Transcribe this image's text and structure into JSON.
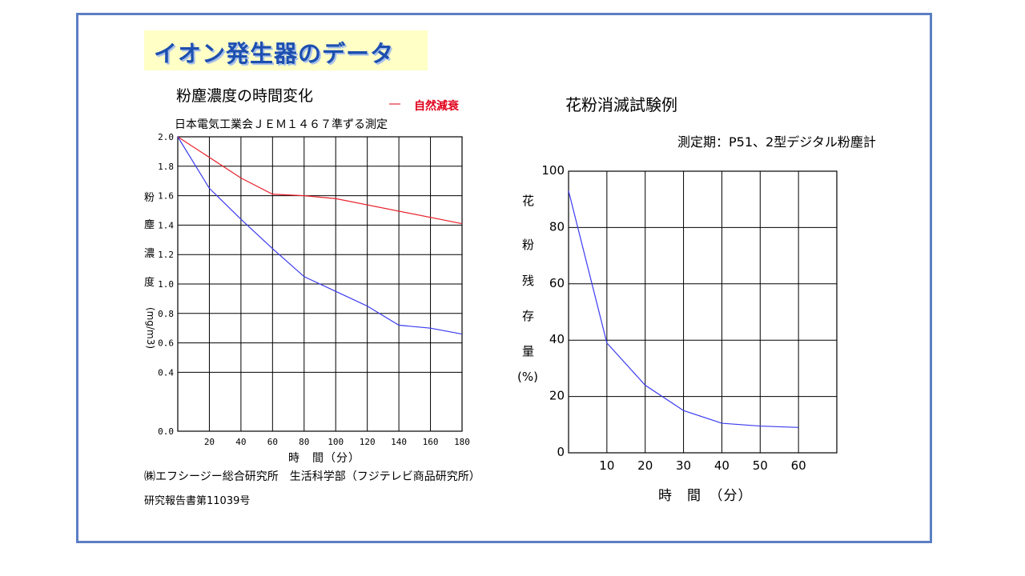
{
  "page": {
    "title": "イオン発生器のデータ",
    "source_line1": "㈱エフシージー総合研究所　生活科学部（フジテレビ商品研究所）",
    "source_line2": "研究報告書第11039号"
  },
  "left_chart": {
    "title": "粉塵濃度の時間変化",
    "subtitle": "日本電気工業会ＪＥＭ１４６７準ずる測定",
    "legend_dash": "―",
    "legend_label": "自然減衰",
    "ylabel_chars": [
      "粉",
      "塵",
      "濃",
      "度"
    ],
    "ylabel_unit": "(mg/m3)",
    "xlabel": "時　間（分）"
  },
  "right_chart": {
    "title": "花粉消滅試験例",
    "note": "測定期：P51、2型デジタル粉塵計",
    "ylabel_chars": [
      "花",
      "粉",
      "残",
      "存",
      "量"
    ],
    "ylabel_unit": "(%)",
    "xlabel": "時　間　（分）"
  },
  "colors": {
    "frame": "#5b7fc4",
    "title_bg": "#ffffc6",
    "title_text": "#1d4fb0",
    "natural_decay": "#e8202a",
    "ion": "#3a3af0",
    "legend_text": "#e0001b"
  },
  "chart_data": [
    {
      "type": "line",
      "title": "粉塵濃度の時間変化",
      "xlabel": "時　間（分）",
      "ylabel": "粉塵濃度(mg/m3)",
      "xlim": [
        0,
        180
      ],
      "ylim": [
        0.0,
        2.0
      ],
      "x_ticks": [
        20,
        40,
        60,
        80,
        100,
        120,
        140,
        160,
        180
      ],
      "y_ticks": [
        0.0,
        0.4,
        0.6,
        0.8,
        1.0,
        1.2,
        1.4,
        1.6,
        1.8,
        2.0
      ],
      "y_tick_labels": [
        "0.0",
        "0.4",
        "0.6",
        "0.8",
        "1.0",
        "1.2",
        "1.4",
        "1.6",
        "1.8",
        "2.0"
      ],
      "grid": true,
      "legend": "top-right",
      "series": [
        {
          "name": "自然減衰",
          "color": "#e8202a",
          "x": [
            0,
            40,
            60,
            80,
            100,
            180
          ],
          "y": [
            2.0,
            1.72,
            1.61,
            1.6,
            1.58,
            1.41
          ]
        },
        {
          "color": "#3a3af0",
          "x": [
            0,
            20,
            40,
            60,
            80,
            100,
            120,
            140,
            160,
            180
          ],
          "y": [
            2.0,
            1.65,
            1.44,
            1.24,
            1.05,
            0.95,
            0.85,
            0.72,
            0.7,
            0.66
          ]
        }
      ]
    },
    {
      "type": "line",
      "title": "花粉消滅試験例",
      "xlabel": "時　間　（分）",
      "ylabel": "花粉残存量(%)",
      "xlim": [
        0,
        70
      ],
      "ylim": [
        0,
        100
      ],
      "x_ticks": [
        10,
        20,
        30,
        40,
        50,
        60
      ],
      "y_ticks": [
        0,
        20,
        40,
        60,
        80,
        100
      ],
      "grid": true,
      "series": [
        {
          "color": "#3a3af0",
          "x": [
            0,
            10,
            20,
            30,
            40,
            50,
            60
          ],
          "y": [
            93,
            39,
            24,
            15,
            10.5,
            9.5,
            9
          ]
        }
      ]
    }
  ]
}
